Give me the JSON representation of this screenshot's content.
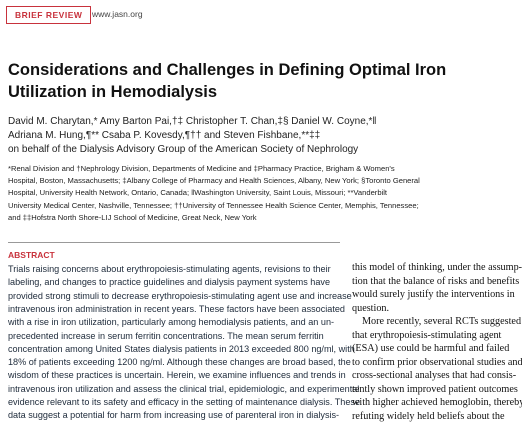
{
  "header": {
    "section": "BRIEF REVIEW",
    "url": "www.jasn.org"
  },
  "title_lines": [
    "Considerations and Challenges in Defining Optimal Iron",
    "Utilization in Hemodialysis"
  ],
  "author_lines": [
    "David M. Charytan,* Amy Barton Pai,†‡ Christopher T. Chan,‡§ Daniel W. Coyne,*‖",
    "Adriana M. Hung,¶** Csaba P. Kovesdy,¶†† and Steven Fishbane,**‡‡",
    "on behalf of the Dialysis Advisory Group of the American Society of Nephrology"
  ],
  "affiliation_lines": [
    "*Renal Division and †Nephrology Division, Departments of Medicine and ‡Pharmacy Practice, Brigham & Women's",
    "Hospital, Boston, Massachusetts; ‡Albany College of Pharmacy and Health Sciences, Albany, New York; §Toronto General",
    "Hospital, University Health Network, Ontario, Canada; ‖Washington University, Saint Louis, Missouri; **Vanderbilt",
    "University Medical Center, Nashville, Tennessee; ††University of Tennessee Health Science Center, Memphis, Tennessee;",
    "and ‡‡Hofstra North Shore-LIJ School of Medicine, Great Neck, New York"
  ],
  "abstract": {
    "heading": "ABSTRACT",
    "lines": [
      "Trials raising concerns about erythropoiesis-stimulating agents, revisions to their",
      "labeling, and changes to practice guidelines and dialysis payment systems have",
      "provided strong stimuli to decrease erythropoiesis-stimulating agent use and increase",
      "intravenous iron administration in recent years. These factors have been associated",
      "with a rise in iron utilization, particularly among hemodialysis patients, and an un-",
      "precedented increase in serum ferritin concentrations. The mean serum ferritin",
      "concentration among United States dialysis patients in 2013 exceeded 800 ng/ml, with",
      "18% of patients exceeding 1200 ng/ml. Although these changes are broad based, the",
      "wisdom of these practices is uncertain. Herein, we examine influences and trends in",
      "intravenous iron utilization and assess the clinical trial, epidemiologic, and experimental",
      "evidence relevant to its safety and efficacy in the setting of maintenance dialysis. These",
      "data suggest a potential for harm from increasing use of parenteral iron in dialysis-"
    ]
  },
  "body_lines": [
    "this model of thinking, under the assump-",
    "tion that the balance of risks and benefits",
    "would surely justify the interventions in",
    "question.",
    "More recently, several RCTs suggested",
    "that erythropoiesis-stimulating agent",
    "(ESA) use could be harmful and failed",
    "to confirm prior observational studies and",
    "cross-sectional analyses that had consis-",
    "tently shown improved patient outcomes",
    "with higher achieved hemoglobin, thereby",
    "refuting widely held beliefs about the"
  ]
}
